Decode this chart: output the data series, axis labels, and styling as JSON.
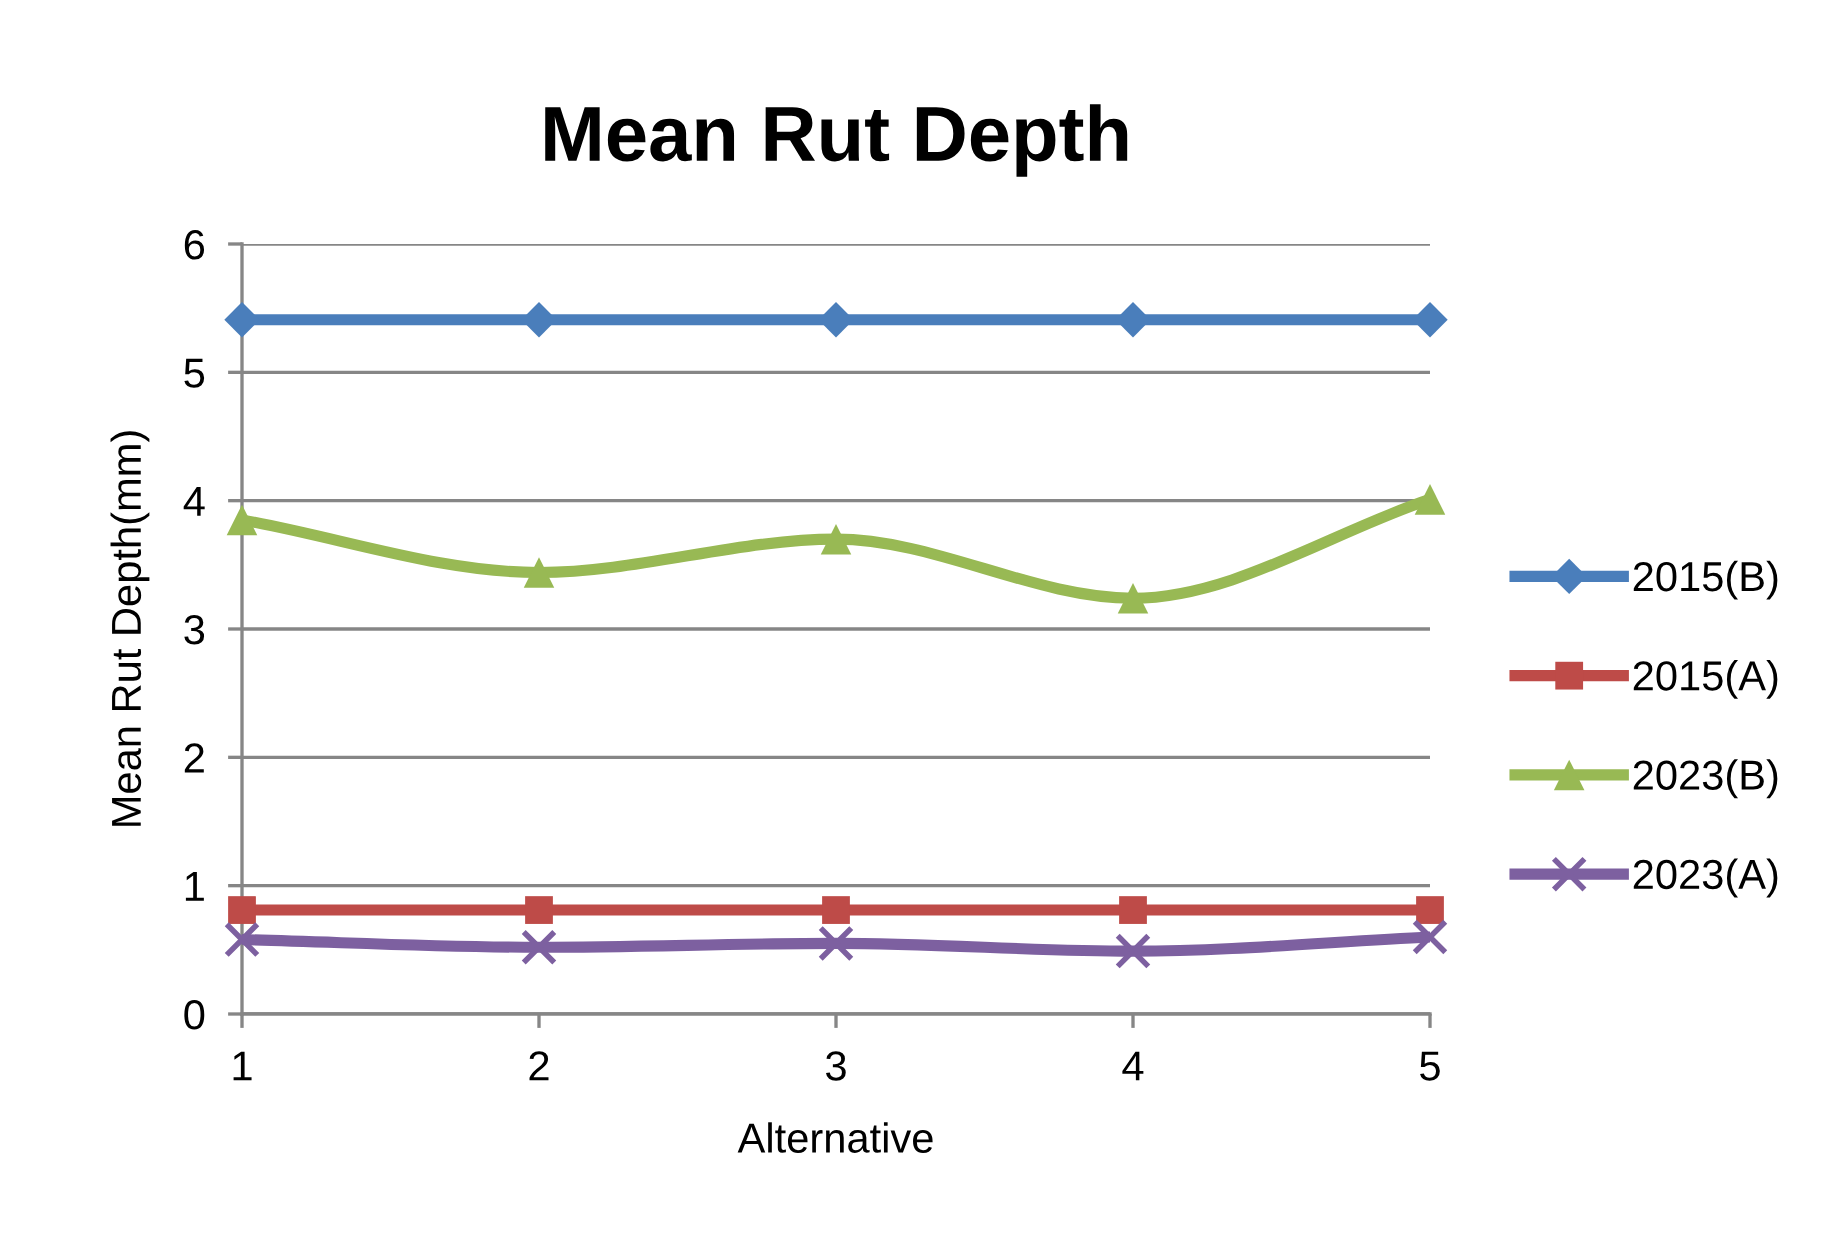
{
  "chart_data": {
    "type": "line",
    "title": "Mean Rut Depth",
    "xlabel": "Alternative",
    "ylabel": "Mean Rut Depth(mm)",
    "categories": [
      "1",
      "2",
      "3",
      "4",
      "5"
    ],
    "series": [
      {
        "name": "2015(B)",
        "color": "#4a7ebb",
        "marker": "diamond",
        "values": [
          5.41,
          5.41,
          5.41,
          5.41,
          5.41
        ]
      },
      {
        "name": "2015(A)",
        "color": "#be4b48",
        "marker": "square",
        "values": [
          0.81,
          0.81,
          0.81,
          0.81,
          0.81
        ]
      },
      {
        "name": "2023(B)",
        "color": "#98b954",
        "marker": "triangle",
        "values": [
          3.85,
          3.44,
          3.7,
          3.24,
          4.01
        ]
      },
      {
        "name": "2023(A)",
        "color": "#7d60a0",
        "marker": "cross",
        "values": [
          0.58,
          0.52,
          0.55,
          0.49,
          0.6
        ]
      }
    ],
    "ylim": [
      0,
      6
    ],
    "yticks": [
      0,
      1,
      2,
      3,
      4,
      5,
      6
    ],
    "grid": "y",
    "legend": "right"
  }
}
